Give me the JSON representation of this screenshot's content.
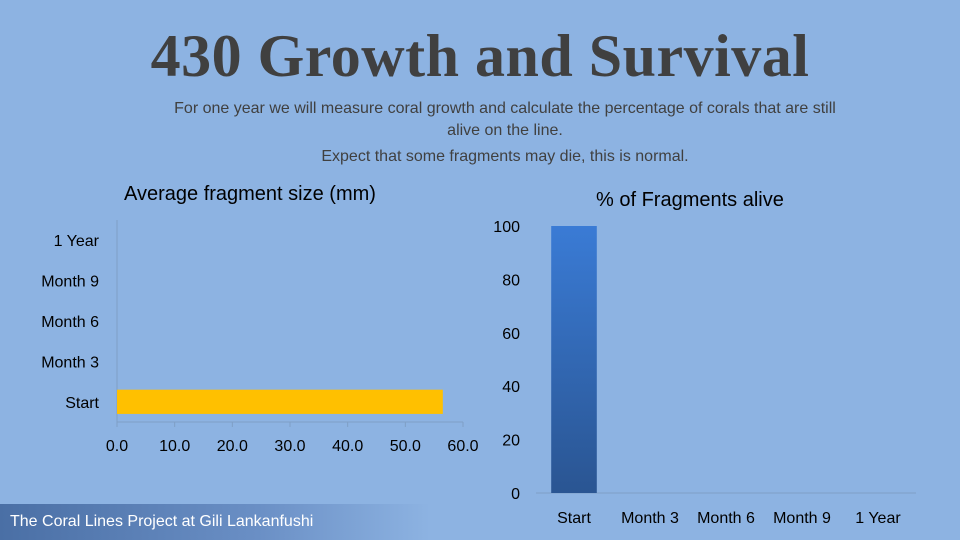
{
  "slide": {
    "title": "430 Growth and Survival",
    "subtitle": "For one year we will measure coral growth and calculate the percentage of corals that are still alive on the line.",
    "note": "Expect that some fragments may die, this is normal.",
    "footer": "The Coral Lines Project at Gili Lankanfushi"
  },
  "chart_data": [
    {
      "type": "bar",
      "orientation": "horizontal",
      "title": "Average fragment size (mm)",
      "categories": [
        "Start",
        "Month 3",
        "Month 6",
        "Month 9",
        "1 Year"
      ],
      "values": [
        56.5,
        null,
        null,
        null,
        null
      ],
      "xlim": [
        0,
        60
      ],
      "ticks": [
        "0.0",
        "10.0",
        "20.0",
        "30.0",
        "40.0",
        "50.0",
        "60.0"
      ],
      "grid": false,
      "color": "#ffc000"
    },
    {
      "type": "bar",
      "orientation": "vertical",
      "title": "% of Fragments alive",
      "categories": [
        "Start",
        "Month 3",
        "Month 6",
        "Month 9",
        "1 Year"
      ],
      "values": [
        100,
        null,
        null,
        null,
        null
      ],
      "ylim": [
        0,
        100
      ],
      "ticks": [
        "0",
        "20",
        "40",
        "60",
        "80",
        "100"
      ],
      "grid": false,
      "color": "#3a78c9"
    }
  ]
}
